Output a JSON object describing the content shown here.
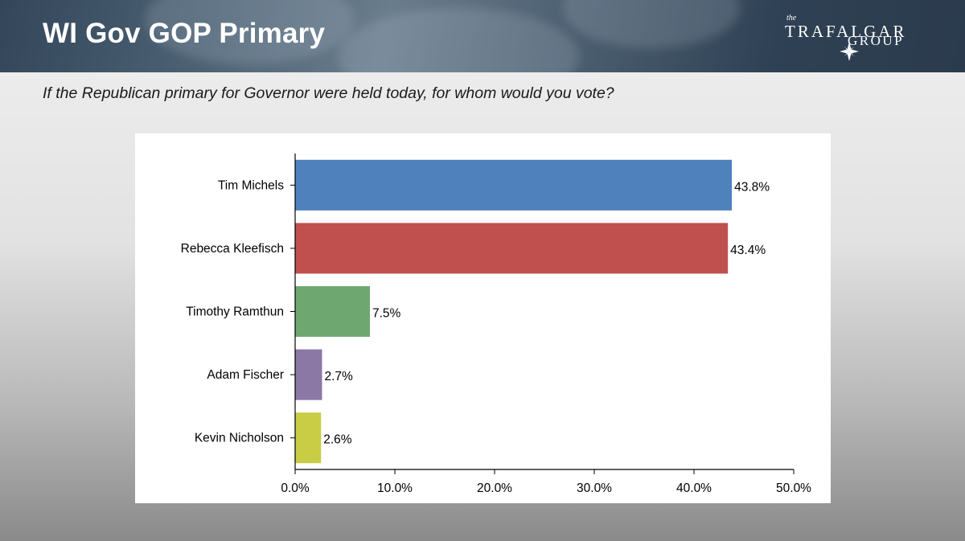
{
  "header": {
    "title": "WI Gov GOP Primary",
    "logo": {
      "small_text": "the",
      "line1": "TRAFALGAR",
      "line2": "GROUP",
      "icon": "compass-star-icon"
    }
  },
  "question": "If the Republican primary for Governor were held today, for whom would you vote?",
  "chart_data": {
    "type": "bar",
    "orientation": "horizontal",
    "categories": [
      "Tim Michels",
      "Rebecca Kleefisch",
      "Timothy Ramthun",
      "Adam Fischer",
      "Kevin Nicholson"
    ],
    "values": [
      43.8,
      43.4,
      7.5,
      2.7,
      2.6
    ],
    "value_labels": [
      "43.8%",
      "43.4%",
      "7.5%",
      "2.7%",
      "2.6%"
    ],
    "colors": [
      "#4f81bd",
      "#c0504d",
      "#6fa771",
      "#8c78a5",
      "#c8cd45"
    ],
    "xlim": [
      0,
      50
    ],
    "x_ticks": [
      0,
      10,
      20,
      30,
      40,
      50
    ],
    "x_tick_labels": [
      "0.0%",
      "10.0%",
      "20.0%",
      "30.0%",
      "40.0%",
      "50.0%"
    ],
    "title": "",
    "xlabel": "",
    "ylabel": "",
    "grid": false,
    "legend": false
  }
}
